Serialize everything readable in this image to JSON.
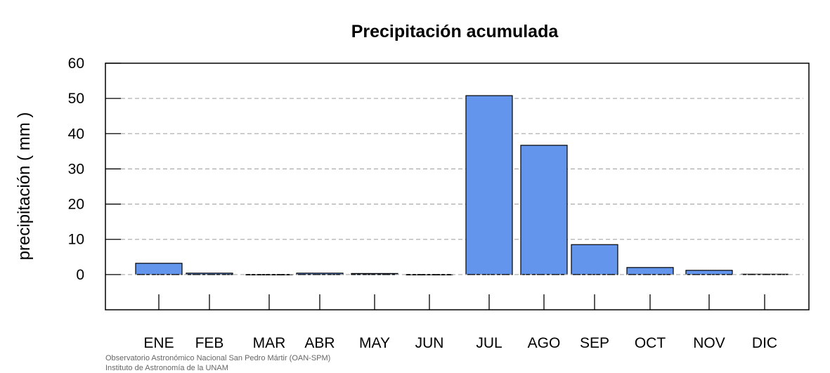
{
  "chart_data": {
    "type": "bar",
    "title": "Precipitación acumulada",
    "xlabel": "",
    "ylabel": "precipitación ( mm )",
    "categories": [
      "ENE",
      "FEB",
      "MAR",
      "ABR",
      "MAY",
      "JUN",
      "JUL",
      "AGO",
      "SEP",
      "OCT",
      "NOV",
      "DIC"
    ],
    "values": [
      3.2,
      0.4,
      0.0,
      0.4,
      0.3,
      0.0,
      50.8,
      36.7,
      8.5,
      2.0,
      1.2,
      0.1
    ],
    "ylim": [
      -10,
      60
    ],
    "yticks": [
      0,
      10,
      20,
      30,
      40,
      50,
      60
    ],
    "grid": "horizontal dashed",
    "legend": "none",
    "bar_color": "#6495ED",
    "bar_border_color": "#000000",
    "grid_color": "#b0b0b0"
  },
  "footer": {
    "line1": "Observatorio Astronómico Nacional San Pedro Mártir (OAN-SPM)",
    "line2": "Instituto de Astronomía de la UNAM"
  }
}
